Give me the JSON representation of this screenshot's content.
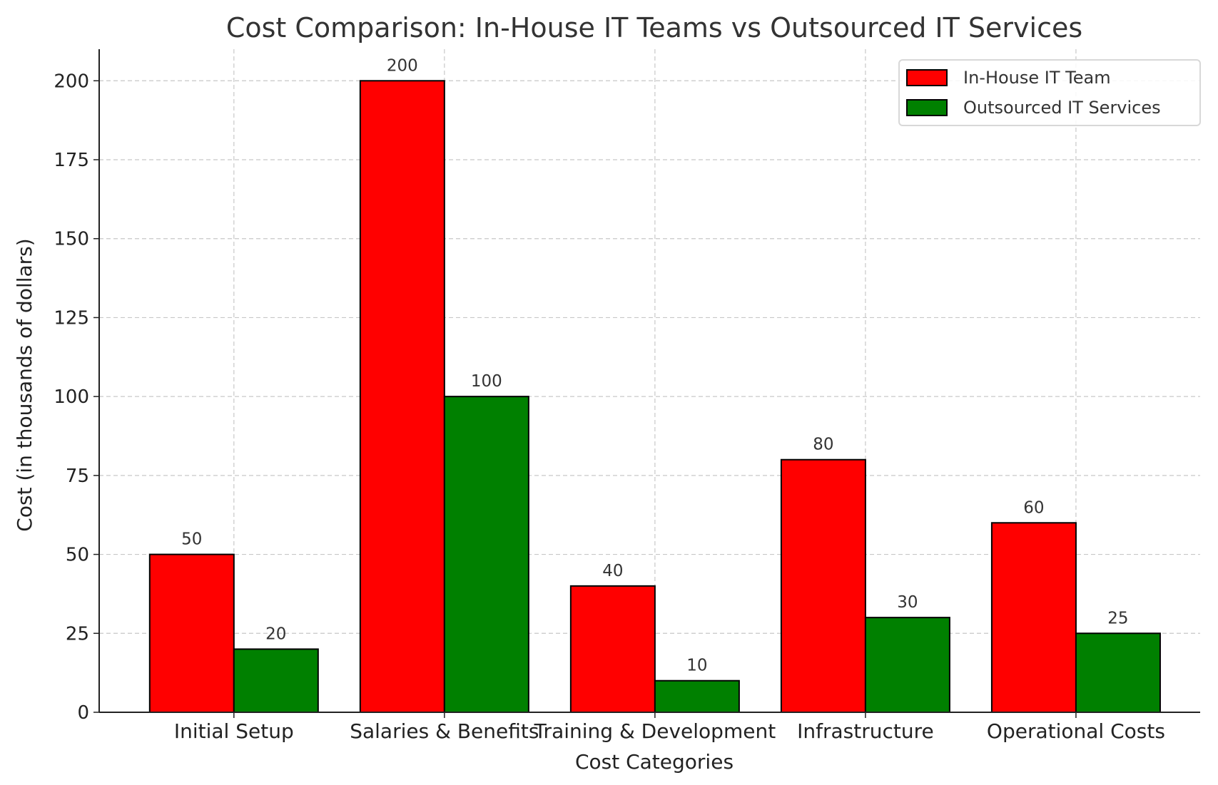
{
  "chart_data": {
    "type": "bar",
    "title": "Cost Comparison: In-House IT Teams vs Outsourced IT Services",
    "xlabel": "Cost Categories",
    "ylabel": "Cost (in thousands of dollars)",
    "categories": [
      "Initial Setup",
      "Salaries & Benefits",
      "Training & Development",
      "Infrastructure",
      "Operational Costs"
    ],
    "series": [
      {
        "name": "In-House IT Team",
        "color": "#ff0000",
        "values": [
          50,
          200,
          40,
          80,
          60
        ]
      },
      {
        "name": "Outsourced IT Services",
        "color": "#008000",
        "values": [
          20,
          100,
          10,
          30,
          25
        ]
      }
    ],
    "ylim": [
      0,
      210
    ],
    "yticks": [
      0,
      25,
      50,
      75,
      100,
      125,
      150,
      175,
      200
    ],
    "grid": true,
    "legend": "top-right"
  }
}
